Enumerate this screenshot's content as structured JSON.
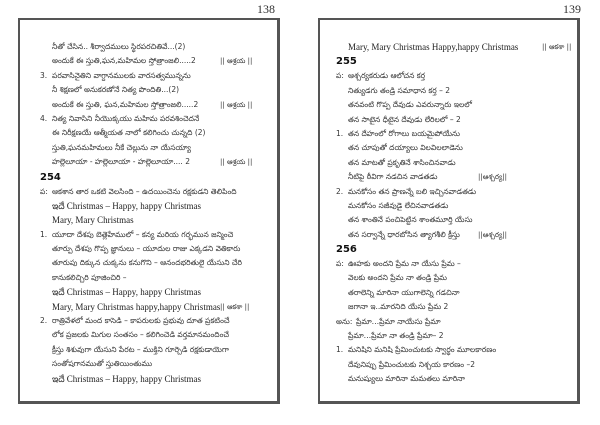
{
  "pages": [
    {
      "page_number": "138",
      "lines": [
        {
          "marker": "",
          "text": "నీతో చేసిన.. శీర్వాదములు స్థిరపరచితివే...(2)",
          "refrain": ""
        },
        {
          "marker": "",
          "text": "అందుకే ఈ స్తుతి,ఘన,మహిమల స్తోత్రాంజలి.....2",
          "refrain": "|| ఆశ్రయ ||"
        },
        {
          "marker": "3.",
          "text": "పరవాసినైతిని వాగ్దానములకు వారసత్వమున్నను",
          "refrain": ""
        },
        {
          "marker": "",
          "text": "నీ శిక్షణలో అనుకరణోనే నిత్య పొందితి...(2)",
          "refrain": ""
        },
        {
          "marker": "",
          "text": "అందుకే ఈ స్తుతి, ఘన,మహిమల స్తోత్రాంజలి.....2",
          "refrain": "|| ఆశ్రయ ||"
        },
        {
          "marker": "4.",
          "text": "నిత్య నివాసిని నీయొక్కయు మహిమ పరవశించెదనే",
          "refrain": ""
        },
        {
          "marker": "",
          "text": "ఈ నిరీక్షణయే ఆత్మీయత నాలో కలిగించు చున్నది (2)",
          "refrain": ""
        },
        {
          "marker": "",
          "text": "స్తుతి,ఘనమహిమలు నీకే చెల్లును నా యేసయ్యా",
          "refrain": ""
        },
        {
          "marker": "",
          "text": "హల్లెలూయా - హల్లెలూయా - హల్లెలూయా.... 2",
          "refrain": "|| ఆశ్రయ ||"
        },
        {
          "heading": "254"
        },
        {
          "marker": "ప:",
          "text": "ఆకశాన తార ఒకటి వెలసింది – ఉదయించెను రక్షకుడని తెలిపింది",
          "refrain": ""
        },
        {
          "marker": "",
          "text": "ఇదే Christmas – Happy, happy Christmas",
          "refrain": "",
          "english": true
        },
        {
          "marker": "",
          "text": "Mary, Mary Christmas",
          "refrain": "",
          "english": true
        },
        {
          "marker": "1.",
          "text": "యూదా దేశపు బెత్లెహేములో – కన్య మరియ గర్భమున జన్మించె",
          "refrain": ""
        },
        {
          "marker": "",
          "text": "తూర్పు దేశపు గొప్ప జ్ఞానులు – యూదుల రాజు ఎక్కడని వెతికారు",
          "refrain": ""
        },
        {
          "marker": "",
          "text": "తూరుపు దిక్కున చుక్కను కనుగొని – ఆనందభరితులై యేసుని చేరి",
          "refrain": ""
        },
        {
          "marker": "",
          "text": "కానుకలిచ్చిరి పూజించిరి –",
          "refrain": ""
        },
        {
          "marker": "",
          "text": "ఇదే Christmas – Happy, happy Christmas",
          "refrain": "",
          "english": true
        },
        {
          "marker": "",
          "text": "Mary, Mary Christmas happy,happy Christmas",
          "refrain": "|| ఆకశా ||",
          "english": true
        },
        {
          "marker": "2.",
          "text": "రాత్రివేళలో మంద కాసెడి – కాపరులకు ప్రభువు దూత ప్రకటించే",
          "refrain": ""
        },
        {
          "marker": "",
          "text": "లోక ప్రజలకు మిగుల సంతసం – కలిగించెడి వర్తమానమందించే",
          "refrain": ""
        },
        {
          "marker": "",
          "text": "క్రీస్తు శిశువుగా యేసుని పేరట – ముక్తిని గూర్చెడి రక్షకుడాయెగా",
          "refrain": ""
        },
        {
          "marker": "",
          "text": "సంతోషగానముతో స్తుతియింతుము",
          "refrain": ""
        },
        {
          "marker": "",
          "text": "ఇదే Christmas – Happy, happy Christmas",
          "refrain": "",
          "english": true
        }
      ]
    },
    {
      "page_number": "139",
      "lines": [
        {
          "marker": "",
          "text": "Mary, Mary Christmas Happy,happy Christmas",
          "refrain": "|| ఆకశా ||",
          "english": true
        },
        {
          "heading": "255"
        },
        {
          "marker": "ప:",
          "text": "ఆశ్చర్యకరుడు ఆలోచన కర్త",
          "refrain": ""
        },
        {
          "marker": "",
          "text": "నిత్యుడగు తండ్రి సమాధాన కర్త – 2",
          "refrain": ""
        },
        {
          "marker": "",
          "text": "తనవంటి గొప్ప దేవుడు ఎవరున్నారు ఇలలో",
          "refrain": ""
        },
        {
          "marker": "",
          "text": "తన సాటైన ధీటైన దేవుడు లేరిలలో – 2",
          "refrain": ""
        },
        {
          "marker": "1.",
          "text": "తన దేహంలో రోగాలు బయమైపోయేను",
          "refrain": ""
        },
        {
          "marker": "",
          "text": "తన చూపుతో దయ్యాలు విలవిలలాడెను",
          "refrain": ""
        },
        {
          "marker": "",
          "text": "తన మాటతో ప్రకృతినే శాసించినవాడు",
          "refrain": ""
        },
        {
          "marker": "",
          "text": "నీటిపై ఠీవిగా నడచిన వాడతడు",
          "refrain": "||ఆశ్చర్య||"
        },
        {
          "marker": "2.",
          "text": "మనకోసం తన ప్రాణన్నే బలి ఇచ్చినవాడతడు",
          "refrain": ""
        },
        {
          "marker": "",
          "text": "మనకోసం సజీవుడై లేచినవాడతడు",
          "refrain": ""
        },
        {
          "marker": "",
          "text": "తన శాంతినే పంచిపెట్టిన శాంతమూర్తి యేసు",
          "refrain": ""
        },
        {
          "marker": "",
          "text": "తన సర్వాన్నే ధారబోసిన త్యాగశీలి క్రీస్తు",
          "refrain": "||ఆశ్చర్య||"
        },
        {
          "heading": "256"
        },
        {
          "marker": "ప:",
          "text": "ఊహకు అందని ప్రేమ నా యేసు ప్రేమ –",
          "refrain": ""
        },
        {
          "marker": "",
          "text": "వెలకు అందని ప్రేమ నా తండ్రి ప్రేమ",
          "refrain": ""
        },
        {
          "marker": "",
          "text": "తరాలెన్ని మారినా యుగాలెన్ని గడచినా",
          "refrain": ""
        },
        {
          "marker": "",
          "text": "జగానా ఇ..మారనిది యేసు ప్రేమ 2",
          "refrain": ""
        },
        {
          "marker": "అను:",
          "text": "ప్రేమా…ప్రేమా నాయేసు ప్రేమా",
          "refrain": ""
        },
        {
          "marker": "",
          "text": "ప్రేమా…ప్రేమా నా తండ్రి ప్రేమా– 2",
          "refrain": ""
        },
        {
          "marker": "1.",
          "text": "మనిషిని మనిషి ప్రేమించుటకు స్వార్థం మూలకారణం",
          "refrain": ""
        },
        {
          "marker": "",
          "text": "దేవునిప్పు ప్రేమించుటకు నిశ్చయ కారణం –2",
          "refrain": ""
        },
        {
          "marker": "",
          "text": "మనుష్యులు మారినా మమతలు మారినా",
          "refrain": ""
        }
      ]
    }
  ]
}
